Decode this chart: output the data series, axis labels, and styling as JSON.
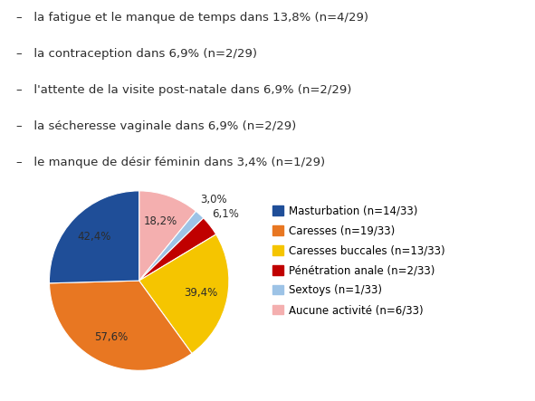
{
  "bullet_lines": [
    "–   la fatigue et le manque de temps dans 13,8% (n=4/29)",
    "–   la contraception dans 6,9% (n=2/29)",
    "–   l'attente de la visite post-natale dans 6,9% (n=2/29)",
    "–   la sécheresse vaginale dans 6,9% (n=2/29)",
    "–   le manque de désir féminin dans 3,4% (n=1/29)"
  ],
  "slices": [
    {
      "label": "Masturbation (n=14/33)",
      "value": 42.4,
      "color": "#1F4E98"
    },
    {
      "label": "Caresses (n=19/33)",
      "value": 57.6,
      "color": "#E87722"
    },
    {
      "label": "Caresses buccales (n=13/33)",
      "value": 39.4,
      "color": "#F5C500"
    },
    {
      "label": "Pénétration anale (n=2/33)",
      "value": 6.1,
      "color": "#C00000"
    },
    {
      "label": "Sextoys (n=1/33)",
      "value": 3.0,
      "color": "#9DC3E6"
    },
    {
      "label": "Aucune activité (n=6/33)",
      "value": 18.2,
      "color": "#F4AFAF"
    }
  ],
  "pct_labels": [
    "42,4%",
    "57,6%",
    "39,4%",
    "6,1%",
    "3,0%",
    "18,2%"
  ],
  "background_color": "#ffffff",
  "text_color": "#2c2c2c",
  "bullet_fontsize": 9.5,
  "label_fontsize": 8.5,
  "legend_fontsize": 8.5
}
